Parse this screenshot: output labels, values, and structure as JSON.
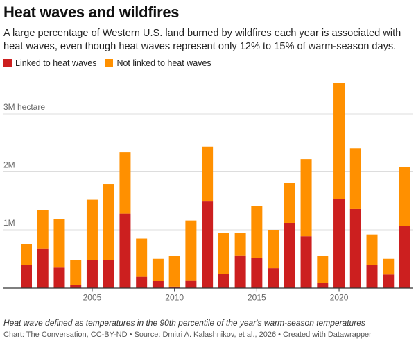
{
  "header": {
    "title": "Heat waves and wildfires",
    "subtitle": "A large percentage of Western U.S. land burned by wildfires each year is associated with heat waves, even though heat waves represent only 12% to 15% of warm-season days."
  },
  "colors": {
    "linked": "#cc1f1f",
    "not_linked": "#ff9000",
    "grid": "#dddddd",
    "axis": "#333333",
    "tick_text": "#666666"
  },
  "chart_data": {
    "type": "bar",
    "stacked": true,
    "x": [
      2001,
      2002,
      2003,
      2004,
      2005,
      2006,
      2007,
      2008,
      2009,
      2010,
      2011,
      2012,
      2013,
      2014,
      2015,
      2016,
      2017,
      2018,
      2019,
      2020,
      2021,
      2022,
      2023,
      2024
    ],
    "series": [
      {
        "name": "Linked to heat waves",
        "color": "#cc1f1f",
        "values": [
          0.4,
          0.68,
          0.35,
          0.05,
          0.48,
          0.48,
          1.28,
          0.19,
          0.12,
          0.02,
          0.13,
          1.49,
          0.24,
          0.56,
          0.52,
          0.34,
          1.12,
          0.89,
          0.08,
          1.53,
          1.36,
          0.4,
          0.23,
          1.06
        ]
      },
      {
        "name": "Not linked to heat waves",
        "color": "#ff9000",
        "values": [
          0.35,
          0.66,
          0.83,
          0.43,
          1.04,
          1.31,
          1.06,
          0.66,
          0.38,
          0.53,
          1.03,
          0.95,
          0.71,
          0.38,
          0.89,
          0.66,
          0.69,
          1.33,
          0.47,
          2.0,
          1.05,
          0.52,
          0.27,
          1.02
        ]
      }
    ],
    "y_unit": "M hectare",
    "ylim": [
      0,
      3.6
    ],
    "y_ticks": [
      {
        "value": 1,
        "label": "1M"
      },
      {
        "value": 2,
        "label": "2M"
      },
      {
        "value": 3,
        "label": "3M hectare"
      }
    ],
    "x_ticks": [
      2005,
      2010,
      2015,
      2020
    ],
    "grid": true,
    "legend_position": "top-left"
  },
  "notes": {
    "description": "Heat wave defined as temperatures in the 90th percentile of the year's warm-season temperatures",
    "credit": "Chart: The Conversation, CC-BY-ND • Source: Dmitri A. Kalashnikov, et al., 2026 • Created with Datawrapper"
  }
}
